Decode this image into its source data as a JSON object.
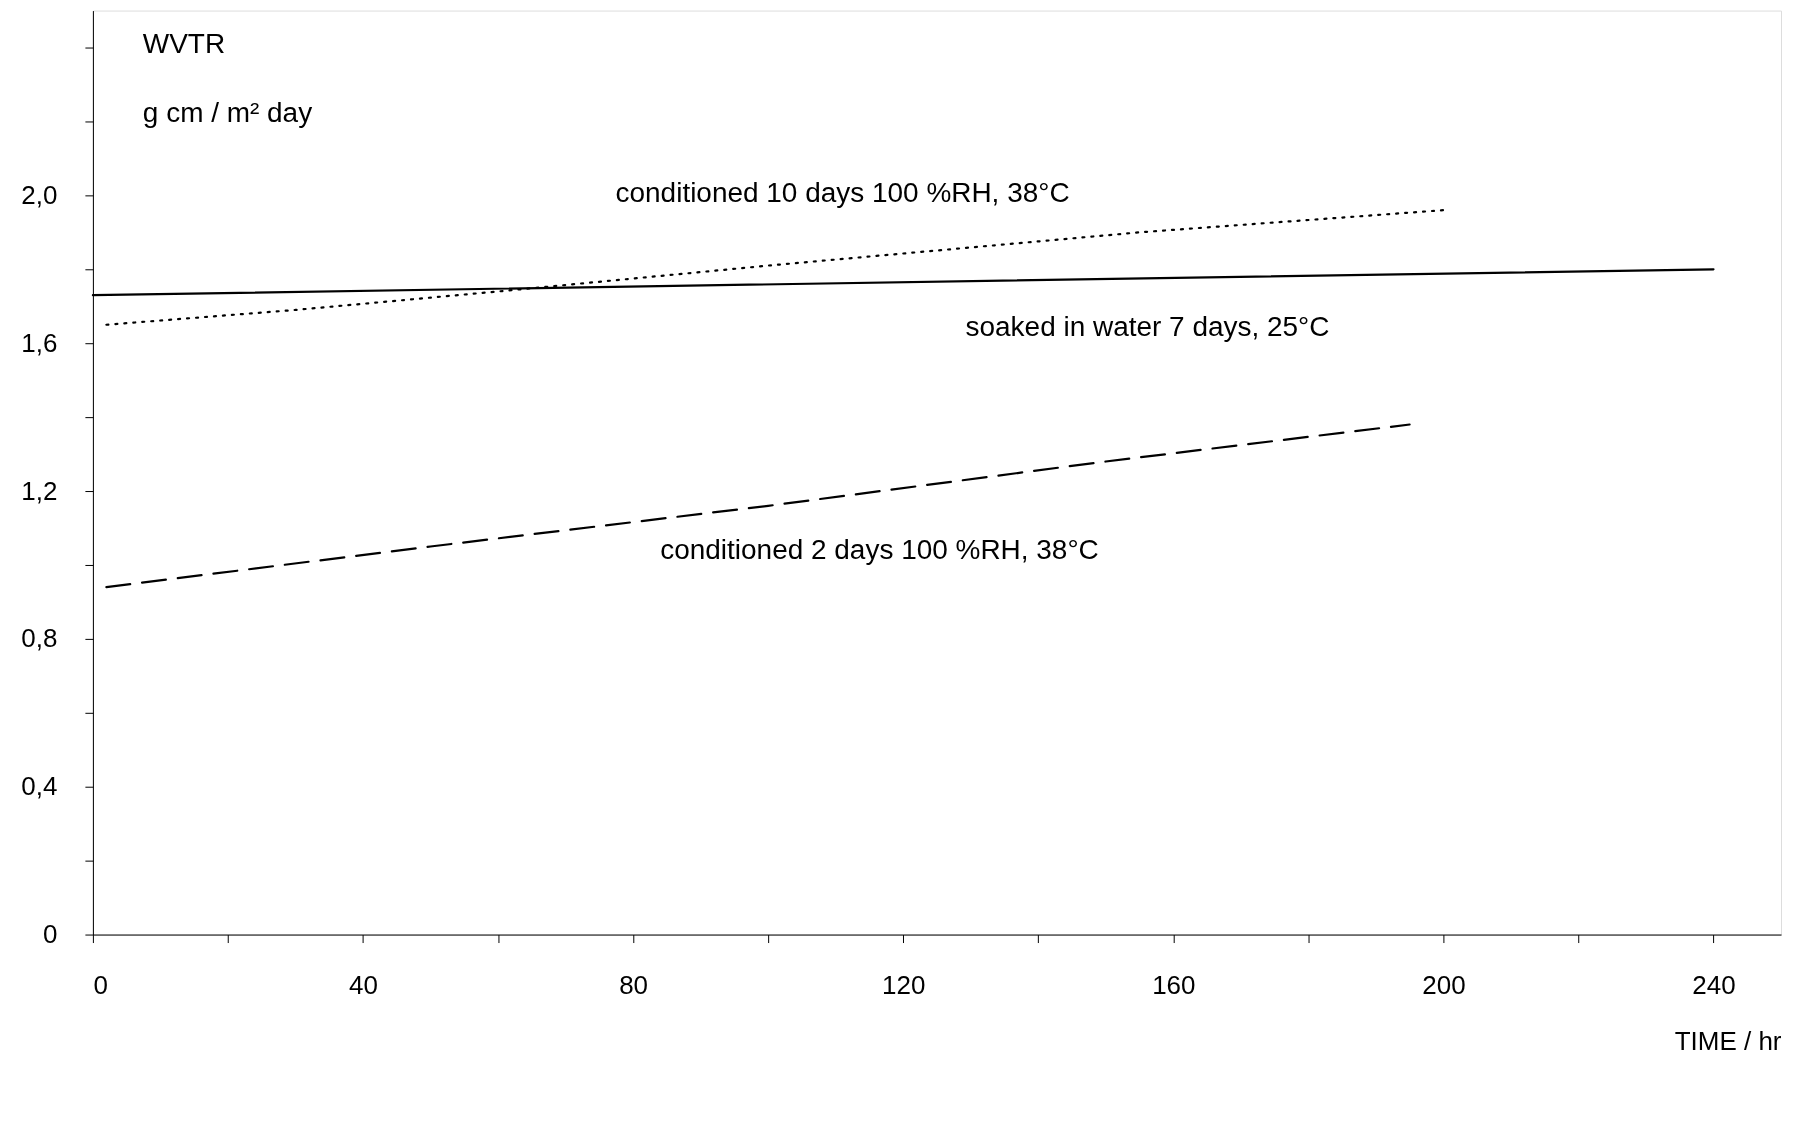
{
  "chart_data": {
    "type": "line",
    "xlabel": "TIME / hr",
    "ylabel": [
      "WVTR",
      "g cm / m² day"
    ],
    "xlim": [
      0,
      250
    ],
    "ylim": [
      0,
      2.5
    ],
    "xticks": [
      0,
      {
        "value": 20,
        "label": null
      },
      40,
      {
        "value": 60,
        "label": null
      },
      80,
      {
        "value": 100,
        "label": null
      },
      120,
      {
        "value": 140,
        "label": null
      },
      160,
      {
        "value": 180,
        "label": null
      },
      200,
      {
        "value": 220,
        "label": null
      },
      240
    ],
    "yticks": [
      0,
      {
        "value": 0.2,
        "label": null
      },
      {
        "value": 0.4,
        "label": "0,4"
      },
      {
        "value": 0.6,
        "label": null
      },
      {
        "value": 0.8,
        "label": "0,8"
      },
      {
        "value": 1.0,
        "label": null
      },
      {
        "value": 1.2,
        "label": "1,2"
      },
      {
        "value": 1.4,
        "label": null
      },
      {
        "value": 1.6,
        "label": "1,6"
      },
      {
        "value": 1.8,
        "label": null
      },
      {
        "value": 2.0,
        "label": "2,0"
      },
      {
        "value": 2.2,
        "label": null
      },
      {
        "value": 2.4,
        "label": null
      }
    ],
    "grid": false,
    "series": [
      {
        "color": "#000000",
        "line_style": "solid",
        "x": [
          0,
          240
        ],
        "values": [
          1.73,
          1.8
        ]
      },
      {
        "color": "#000000",
        "line_style": "dotted",
        "x": [
          2,
          30,
          60,
          100,
          155,
          200
        ],
        "values": [
          1.65,
          1.69,
          1.74,
          1.81,
          1.9,
          1.96
        ]
      },
      {
        "color": "#000000",
        "line_style": "dashed",
        "x": [
          2,
          50,
          100,
          150,
          195
        ],
        "values": [
          0.94,
          1.05,
          1.16,
          1.28,
          1.38
        ]
      }
    ],
    "annotations": [
      {
        "text": "conditioned  10 days  100 %RH, 38°C",
        "x": 155,
        "y": 1.9
      },
      {
        "text": "soaked in water  7 days, 25°C",
        "x": 192,
        "y": 1.79
      },
      {
        "text": "conditioned  2 days  100 %RH, 38°C",
        "x": 98,
        "y": 1.16
      }
    ]
  }
}
